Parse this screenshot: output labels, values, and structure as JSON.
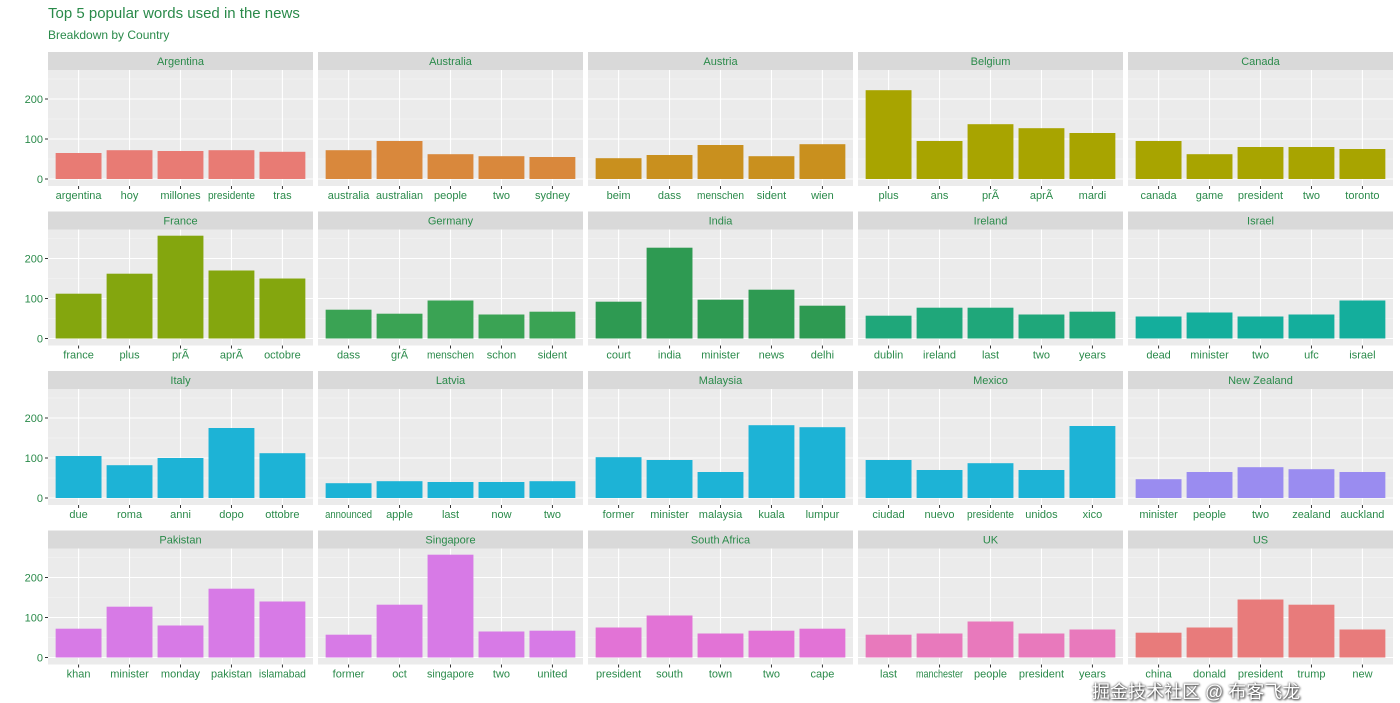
{
  "chart_data": {
    "type": "bar",
    "title": "Top 5 popular words used in the news",
    "subtitle": "Breakdown by Country",
    "xlabel": "",
    "ylabel": "",
    "ylim": [
      0,
      260
    ],
    "yticks": [
      0,
      100,
      200
    ],
    "grid": true,
    "facet_layout": "5 columns x 4 rows",
    "panels": [
      {
        "name": "Argentina",
        "color": "#E87B74",
        "categories": [
          "argentina",
          "hoy",
          "millones",
          "presidente",
          "tras"
        ],
        "values": [
          65,
          72,
          70,
          72,
          68
        ]
      },
      {
        "name": "Australia",
        "color": "#D9883C",
        "categories": [
          "australia",
          "australian",
          "people",
          "two",
          "sydney"
        ],
        "values": [
          72,
          95,
          62,
          57,
          55
        ]
      },
      {
        "name": "Austria",
        "color": "#C9901E",
        "categories": [
          "beim",
          "dass",
          "menschen",
          "sident",
          "wien"
        ],
        "values": [
          52,
          60,
          85,
          57,
          87
        ]
      },
      {
        "name": "Belgium",
        "color": "#A8A400",
        "categories": [
          "plus",
          "ans",
          "prÃ",
          "aprÃ",
          "mardi"
        ],
        "values": [
          222,
          95,
          137,
          127,
          115
        ]
      },
      {
        "name": "Canada",
        "color": "#A8A400",
        "categories": [
          "canada",
          "game",
          "president",
          "two",
          "toronto"
        ],
        "values": [
          95,
          62,
          80,
          80,
          75
        ]
      },
      {
        "name": "France",
        "color": "#84A60E",
        "categories": [
          "france",
          "plus",
          "prÃ",
          "aprÃ",
          "octobre"
        ],
        "values": [
          112,
          162,
          257,
          170,
          150
        ]
      },
      {
        "name": "Germany",
        "color": "#3AA354",
        "categories": [
          "dass",
          "grÃ",
          "menschen",
          "schon",
          "sident"
        ],
        "values": [
          72,
          62,
          95,
          60,
          67
        ]
      },
      {
        "name": "India",
        "color": "#2E9A52",
        "categories": [
          "court",
          "india",
          "minister",
          "news",
          "delhi"
        ],
        "values": [
          92,
          227,
          97,
          122,
          82
        ]
      },
      {
        "name": "Ireland",
        "color": "#1FA77A",
        "categories": [
          "dublin",
          "ireland",
          "last",
          "two",
          "years"
        ],
        "values": [
          57,
          77,
          77,
          60,
          67
        ]
      },
      {
        "name": "Israel",
        "color": "#14AE9C",
        "categories": [
          "dead",
          "minister",
          "two",
          "ufc",
          "israel"
        ],
        "values": [
          55,
          65,
          55,
          60,
          95
        ]
      },
      {
        "name": "Italy",
        "color": "#1DB3D6",
        "categories": [
          "due",
          "roma",
          "anni",
          "dopo",
          "ottobre"
        ],
        "values": [
          105,
          82,
          100,
          175,
          112
        ]
      },
      {
        "name": "Latvia",
        "color": "#1DB3D6",
        "categories": [
          "announced",
          "apple",
          "last",
          "now",
          "two"
        ],
        "values": [
          37,
          42,
          40,
          40,
          42
        ]
      },
      {
        "name": "Malaysia",
        "color": "#1DB3D6",
        "categories": [
          "former",
          "minister",
          "malaysia",
          "kuala",
          "lumpur"
        ],
        "values": [
          102,
          95,
          65,
          182,
          177
        ]
      },
      {
        "name": "Mexico",
        "color": "#1DB3D6",
        "categories": [
          "ciudad",
          "nuevo",
          "presidente",
          "unidos",
          "xico"
        ],
        "values": [
          95,
          70,
          87,
          70,
          180
        ]
      },
      {
        "name": "New Zealand",
        "color": "#9A8CF0",
        "categories": [
          "minister",
          "people",
          "two",
          "zealand",
          "auckland"
        ],
        "values": [
          47,
          65,
          77,
          72,
          65
        ]
      },
      {
        "name": "Pakistan",
        "color": "#D77AE6",
        "categories": [
          "khan",
          "minister",
          "monday",
          "pakistan",
          "islamabad"
        ],
        "values": [
          72,
          127,
          80,
          172,
          140
        ]
      },
      {
        "name": "Singapore",
        "color": "#D77AE6",
        "categories": [
          "former",
          "oct",
          "singapore",
          "two",
          "united"
        ],
        "values": [
          57,
          132,
          257,
          65,
          67
        ]
      },
      {
        "name": "South Africa",
        "color": "#E273D6",
        "categories": [
          "president",
          "south",
          "town",
          "two",
          "cape"
        ],
        "values": [
          75,
          105,
          60,
          67,
          72
        ]
      },
      {
        "name": "UK",
        "color": "#E879BC",
        "categories": [
          "last",
          "manchester",
          "people",
          "president",
          "years"
        ],
        "values": [
          57,
          60,
          90,
          60,
          70
        ]
      },
      {
        "name": "US",
        "color": "#E87B7B",
        "categories": [
          "china",
          "donald",
          "president",
          "trump",
          "new"
        ],
        "values": [
          62,
          75,
          145,
          132,
          70
        ]
      }
    ]
  },
  "watermark": "掘金技术社区 @ 布客飞龙"
}
